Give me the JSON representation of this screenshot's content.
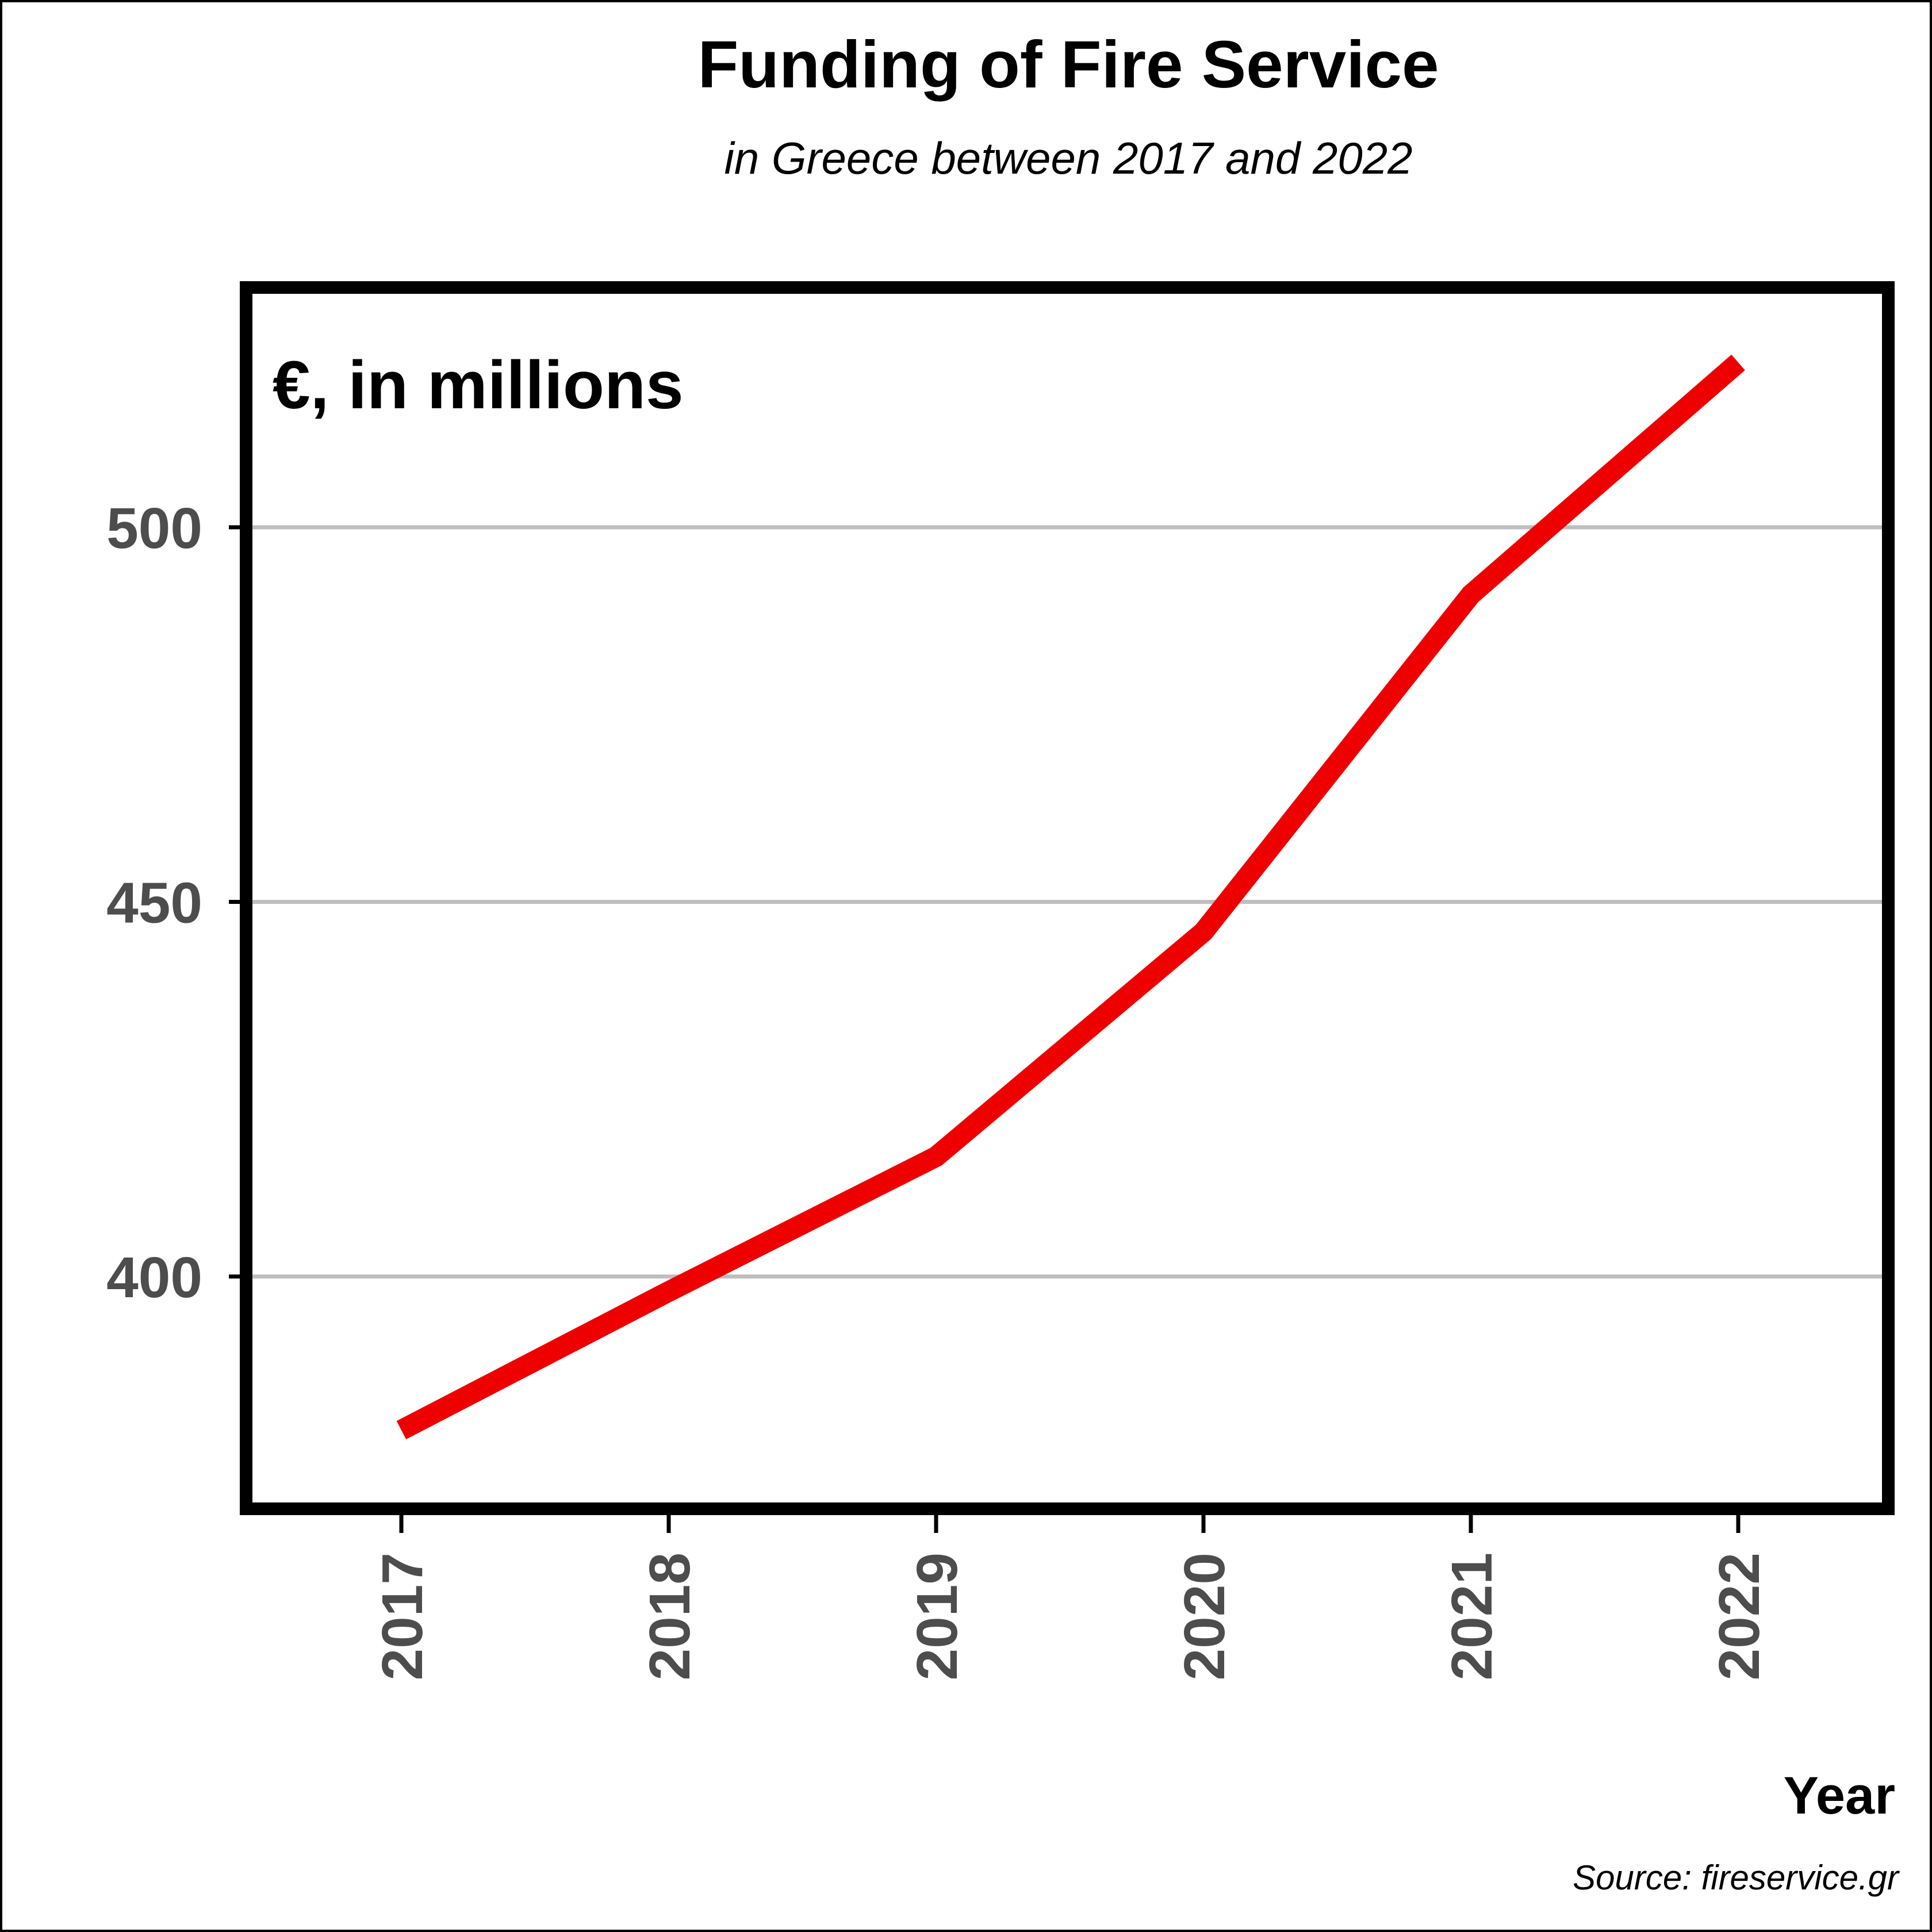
{
  "chart_data": {
    "type": "line",
    "title": "Funding of Fire Service",
    "subtitle": "in Greece between 2017 and 2022",
    "unit_label": "€, in millions",
    "xlabel": "Year",
    "ylabel": "",
    "source": "Source: fireservice.gr",
    "categories": [
      "2017",
      "2018",
      "2019",
      "2020",
      "2021",
      "2022"
    ],
    "series": [
      {
        "name": "Funding",
        "values": [
          379.5,
          398,
          416,
          446,
          491,
          522
        ],
        "color": "#ee0000"
      }
    ],
    "yticks": [
      400,
      450,
      500
    ],
    "ylim": [
      369,
      532
    ],
    "grid": true,
    "grid_color": "#bebebe",
    "axis_text_color": "#4d4d4d",
    "frame_color": "#000000"
  }
}
